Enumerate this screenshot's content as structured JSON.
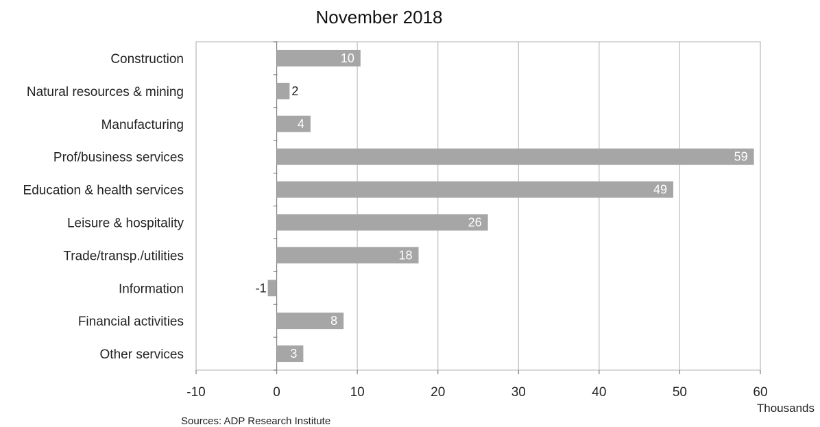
{
  "chart_data": {
    "type": "bar",
    "orientation": "horizontal",
    "title": "November 2018",
    "unit_label": "Thousands",
    "source": "Sources: ADP Research Institute",
    "categories": [
      "Construction",
      "Natural resources & mining",
      "Manufacturing",
      "Prof/business services",
      "Education & health services",
      "Leisure & hospitality",
      "Trade/transp./utilities",
      "Information",
      "Financial activities",
      "Other services"
    ],
    "values": [
      10.4,
      1.6,
      4.2,
      59.2,
      49.2,
      26.2,
      17.6,
      -1.1,
      8.3,
      3.3
    ],
    "data_labels": [
      "10",
      "2",
      "4",
      "59",
      "49",
      "26",
      "18",
      "-1",
      "8",
      "3"
    ],
    "xlim": [
      -10,
      60
    ],
    "xticks": [
      "-10",
      "0",
      "10",
      "20",
      "30",
      "40",
      "50",
      "60"
    ],
    "grid": true,
    "bar_color": "#a6a6a6",
    "grid_color": "#bfbfbf"
  }
}
